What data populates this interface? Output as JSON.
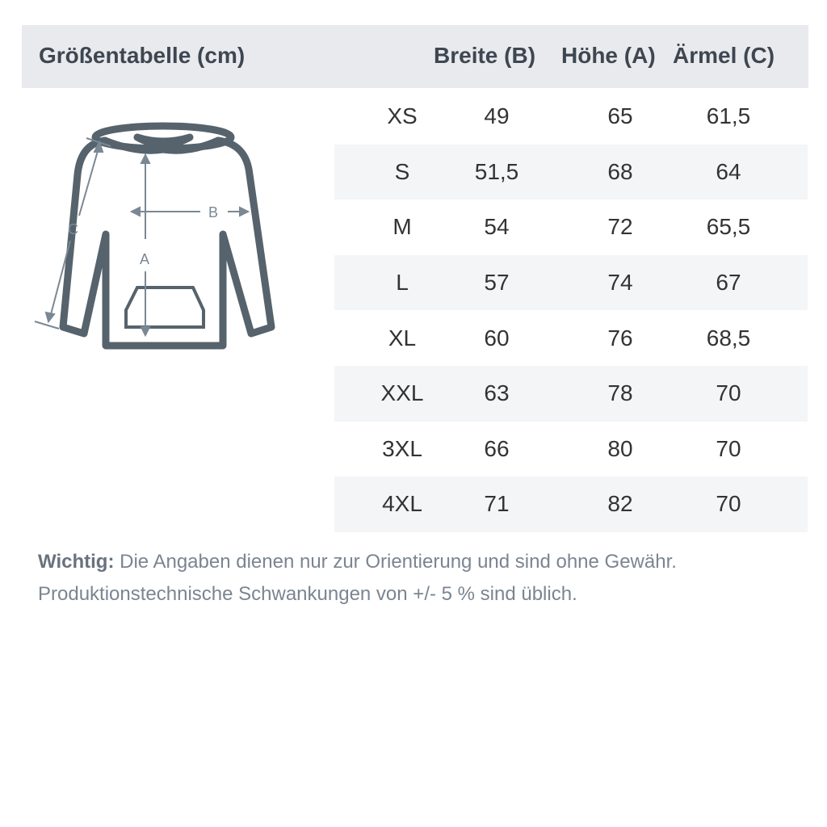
{
  "header": {
    "title": "Größentabelle (cm)",
    "columns": [
      "Breite (B)",
      "Höhe (A)",
      "Ärmel (C)"
    ]
  },
  "diagram": {
    "labels": {
      "a": "A",
      "b": "B",
      "c": "C"
    },
    "color": "#56636c"
  },
  "table": {
    "rows": [
      {
        "size": "XS",
        "breite": "49",
        "hoehe": "65",
        "aermel": "61,5"
      },
      {
        "size": "S",
        "breite": "51,5",
        "hoehe": "68",
        "aermel": "64"
      },
      {
        "size": "M",
        "breite": "54",
        "hoehe": "72",
        "aermel": "65,5"
      },
      {
        "size": "L",
        "breite": "57",
        "hoehe": "74",
        "aermel": "67"
      },
      {
        "size": "XL",
        "breite": "60",
        "hoehe": "76",
        "aermel": "68,5"
      },
      {
        "size": "XXL",
        "breite": "63",
        "hoehe": "78",
        "aermel": "70"
      },
      {
        "size": "3XL",
        "breite": "66",
        "hoehe": "80",
        "aermel": "70"
      },
      {
        "size": "4XL",
        "breite": "71",
        "hoehe": "82",
        "aermel": "70"
      }
    ]
  },
  "note": {
    "label": "Wichtig:",
    "line1": "Die Angaben dienen nur zur Orientierung und sind ohne Gewähr.",
    "line2": "Produktionstechnische Schwankungen von +/- 5 % sind üblich."
  }
}
